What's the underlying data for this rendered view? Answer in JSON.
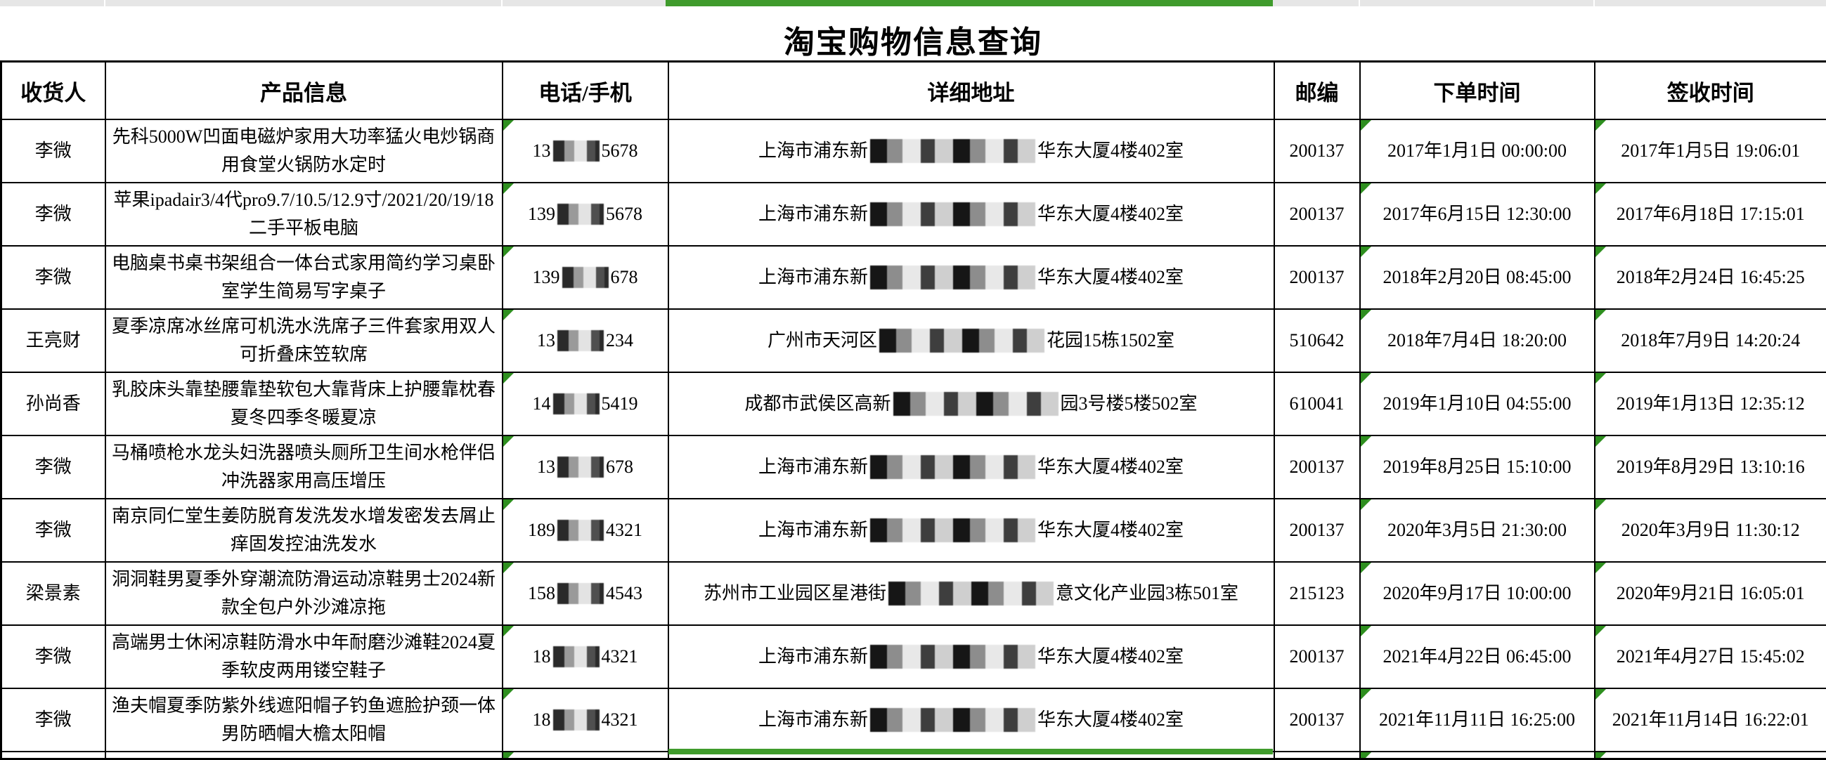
{
  "title": "淘宝购物信息查询",
  "sheet": {
    "strip_background": "#e6e6e6",
    "selected_column_color": "#3f9b2c",
    "error_triangle_color": "#2e8f1f",
    "grid_color": "#000000"
  },
  "table": {
    "columns": [
      {
        "key": "recipient",
        "label": "收货人"
      },
      {
        "key": "product",
        "label": "产品信息"
      },
      {
        "key": "phone",
        "label": "电话/手机"
      },
      {
        "key": "address",
        "label": "详细地址"
      },
      {
        "key": "postcode",
        "label": "邮编"
      },
      {
        "key": "order_time",
        "label": "下单时间"
      },
      {
        "key": "sign_time",
        "label": "签收时间"
      }
    ],
    "rows": [
      {
        "recipient": "李微",
        "product": "先科5000W凹面电磁炉家用大功率猛火电炒锅商用食堂火锅防水定时",
        "phone_prefix": "13",
        "phone_suffix": "5678",
        "address_prefix": "上海市浦东新",
        "address_suffix": "华东大厦4楼402室",
        "postcode": "200137",
        "order_time": "2017年1月1日 00:00:00",
        "sign_time": "2017年1月5日 19:06:01"
      },
      {
        "recipient": "李微",
        "product": "苹果ipadair3/4代pro9.7/10.5/12.9寸/2021/20/19/18二手平板电脑",
        "phone_prefix": "139",
        "phone_suffix": "5678",
        "address_prefix": "上海市浦东新",
        "address_suffix": "华东大厦4楼402室",
        "postcode": "200137",
        "order_time": "2017年6月15日 12:30:00",
        "sign_time": "2017年6月18日 17:15:01"
      },
      {
        "recipient": "李微",
        "product": "电脑桌书桌书架组合一体台式家用简约学习桌卧室学生简易写字桌子",
        "phone_prefix": "139",
        "phone_suffix": "678",
        "address_prefix": "上海市浦东新",
        "address_suffix": "华东大厦4楼402室",
        "postcode": "200137",
        "order_time": "2018年2月20日 08:45:00",
        "sign_time": "2018年2月24日 16:45:25"
      },
      {
        "recipient": "王亮财",
        "product": "夏季凉席冰丝席可机洗水洗席子三件套家用双人可折叠床笠软席",
        "phone_prefix": "13",
        "phone_suffix": "234",
        "address_prefix": "广州市天河区",
        "address_suffix": "花园15栋1502室",
        "postcode": "510642",
        "order_time": "2018年7月4日 18:20:00",
        "sign_time": "2018年7月9日 14:20:24"
      },
      {
        "recipient": "孙尚香",
        "product": "乳胶床头靠垫腰靠垫软包大靠背床上护腰靠枕春夏冬四季冬暖夏凉",
        "phone_prefix": "14",
        "phone_suffix": "5419",
        "address_prefix": "成都市武侯区高新",
        "address_suffix": "园3号楼5楼502室",
        "postcode": "610041",
        "order_time": "2019年1月10日 04:55:00",
        "sign_time": "2019年1月13日 12:35:12"
      },
      {
        "recipient": "李微",
        "product": "马桶喷枪水龙头妇洗器喷头厕所卫生间水枪伴侣冲洗器家用高压增压",
        "phone_prefix": "13",
        "phone_suffix": "678",
        "address_prefix": "上海市浦东新",
        "address_suffix": "华东大厦4楼402室",
        "postcode": "200137",
        "order_time": "2019年8月25日 15:10:00",
        "sign_time": "2019年8月29日 13:10:16"
      },
      {
        "recipient": "李微",
        "product": "南京同仁堂生姜防脱育发洗发水增发密发去屑止痒固发控油洗发水",
        "phone_prefix": "189",
        "phone_suffix": "4321",
        "address_prefix": "上海市浦东新",
        "address_suffix": "华东大厦4楼402室",
        "postcode": "200137",
        "order_time": "2020年3月5日 21:30:00",
        "sign_time": "2020年3月9日 11:30:12"
      },
      {
        "recipient": "梁景素",
        "product": "洞洞鞋男夏季外穿潮流防滑运动凉鞋男士2024新款全包户外沙滩凉拖",
        "phone_prefix": "158",
        "phone_suffix": "4543",
        "address_prefix": "苏州市工业园区星港街",
        "address_suffix": "意文化产业园3栋501室",
        "postcode": "215123",
        "order_time": "2020年9月17日 10:00:00",
        "sign_time": "2020年9月21日 16:05:01"
      },
      {
        "recipient": "李微",
        "product": "高端男士休闲凉鞋防滑水中年耐磨沙滩鞋2024夏季软皮两用镂空鞋子",
        "phone_prefix": "18",
        "phone_suffix": "4321",
        "address_prefix": "上海市浦东新",
        "address_suffix": "华东大厦4楼402室",
        "postcode": "200137",
        "order_time": "2021年4月22日 06:45:00",
        "sign_time": "2021年4月27日 15:45:02"
      },
      {
        "recipient": "李微",
        "product": "渔夫帽夏季防紫外线遮阳帽子钓鱼遮脸护颈一体男防晒帽大檐太阳帽",
        "phone_prefix": "18",
        "phone_suffix": "4321",
        "address_prefix": "上海市浦东新",
        "address_suffix": "华东大厦4楼402室",
        "postcode": "200137",
        "order_time": "2021年11月11日 16:25:00",
        "sign_time": "2021年11月14日 16:22:01"
      }
    ]
  }
}
